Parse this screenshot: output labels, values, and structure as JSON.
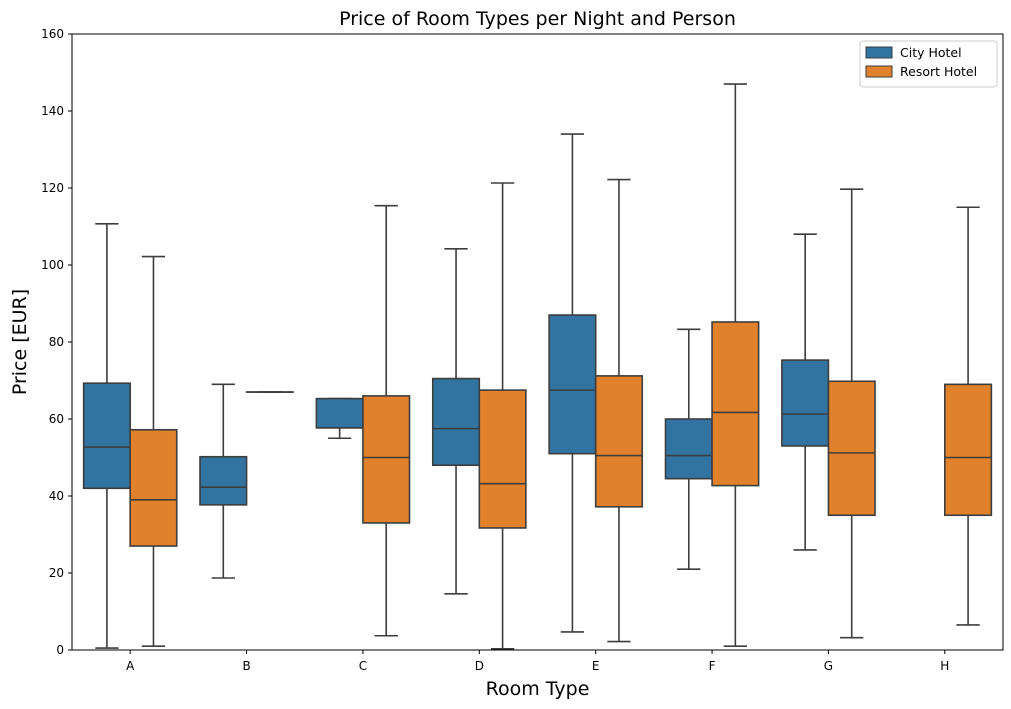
{
  "chart_data": {
    "type": "boxplot",
    "title": "Price of Room Types per Night and Person",
    "xlabel": "Room Type",
    "ylabel": "Price [EUR]",
    "ylim": [
      0,
      160
    ],
    "yticks": [
      0,
      20,
      40,
      60,
      80,
      100,
      120,
      140,
      160
    ],
    "grid": false,
    "legend_position": "top-right",
    "categories": [
      "A",
      "B",
      "C",
      "D",
      "E",
      "F",
      "G",
      "H"
    ],
    "series": [
      {
        "name": "City Hotel",
        "color": "#3274a1",
        "boxes": [
          {
            "whislo": 0.5,
            "q1": 42,
            "med": 52.7,
            "q3": 69.3,
            "whishi": 110.7
          },
          {
            "whislo": 18.7,
            "q1": 37.7,
            "med": 42.3,
            "q3": 50.2,
            "whishi": 69
          },
          {
            "whislo": 55,
            "q1": 57.7,
            "med": 57.7,
            "q3": 65.3,
            "whishi": 65.3
          },
          {
            "whislo": 14.6,
            "q1": 48,
            "med": 57.5,
            "q3": 70.5,
            "whishi": 104.2
          },
          {
            "whislo": 4.7,
            "q1": 51,
            "med": 67.5,
            "q3": 87,
            "whishi": 134
          },
          {
            "whislo": 21,
            "q1": 44.5,
            "med": 50.5,
            "q3": 60,
            "whishi": 83.3
          },
          {
            "whislo": 26,
            "q1": 53,
            "med": 61.3,
            "q3": 75.3,
            "whishi": 108
          },
          null
        ]
      },
      {
        "name": "Resort Hotel",
        "color": "#e1812c",
        "boxes": [
          {
            "whislo": 1,
            "q1": 27,
            "med": 39,
            "q3": 57.2,
            "whishi": 102.2
          },
          {
            "whislo": 67,
            "q1": 67,
            "med": 67,
            "q3": 67,
            "whishi": 67
          },
          {
            "whislo": 3.7,
            "q1": 33,
            "med": 50,
            "q3": 66,
            "whishi": 115.4
          },
          {
            "whislo": 0.3,
            "q1": 31.7,
            "med": 43.2,
            "q3": 67.5,
            "whishi": 121.3
          },
          {
            "whislo": 2.2,
            "q1": 37.2,
            "med": 50.5,
            "q3": 71.2,
            "whishi": 122.2
          },
          {
            "whislo": 1,
            "q1": 42.7,
            "med": 61.7,
            "q3": 85.2,
            "whishi": 147
          },
          {
            "whislo": 3.2,
            "q1": 35,
            "med": 51.2,
            "q3": 69.8,
            "whishi": 119.7
          },
          {
            "whislo": 6.5,
            "q1": 35,
            "med": 50,
            "q3": 69,
            "whishi": 115
          }
        ]
      }
    ]
  }
}
